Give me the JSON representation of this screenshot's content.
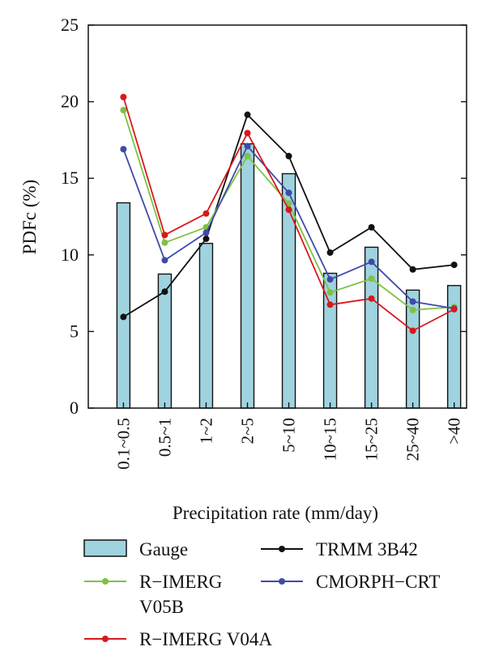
{
  "chart_data": {
    "type": "bar",
    "xlabel": "Precipitation rate (mm/day)",
    "ylabel": "PDFc (%)",
    "ylim": [
      0,
      25
    ],
    "yticks": [
      0,
      5,
      10,
      15,
      20,
      25
    ],
    "grid": false,
    "legend_position": "bottom",
    "categories": [
      "0.1~0.5",
      "0.5~1",
      "1~2",
      "2~5",
      "5~10",
      "10~15",
      "15~25",
      "25~40",
      ">40"
    ],
    "bar_series": {
      "name": "Gauge",
      "color": "#9fd3df",
      "values": [
        13.4,
        8.75,
        10.75,
        17.25,
        15.3,
        8.8,
        10.5,
        7.7,
        8.0
      ]
    },
    "line_series": [
      {
        "name": "TRMM 3B42",
        "color": "#111111",
        "values": [
          5.95,
          7.6,
          11.05,
          19.15,
          16.45,
          10.15,
          11.8,
          9.05,
          9.35
        ]
      },
      {
        "name": "R−IMERG V05B",
        "color": "#7dc242",
        "values": [
          19.45,
          10.8,
          11.8,
          16.45,
          13.35,
          7.55,
          8.45,
          6.4,
          6.6
        ]
      },
      {
        "name": "CMORPH−CRT",
        "color": "#3f4aa8",
        "values": [
          16.9,
          9.65,
          11.45,
          17.1,
          14.05,
          8.4,
          9.55,
          6.95,
          6.5
        ]
      },
      {
        "name": "R−IMERG V04A",
        "color": "#d7191c",
        "values": [
          20.3,
          11.3,
          12.7,
          17.95,
          12.95,
          6.75,
          7.15,
          5.05,
          6.45
        ]
      }
    ]
  },
  "legend": {
    "gauge": "Gauge",
    "trmm": "TRMM 3B42",
    "v05b_line1": "R−IMERG",
    "v05b_line2": "V05B",
    "cmorph": "CMORPH−CRT",
    "v04a": "R−IMERG V04A"
  }
}
